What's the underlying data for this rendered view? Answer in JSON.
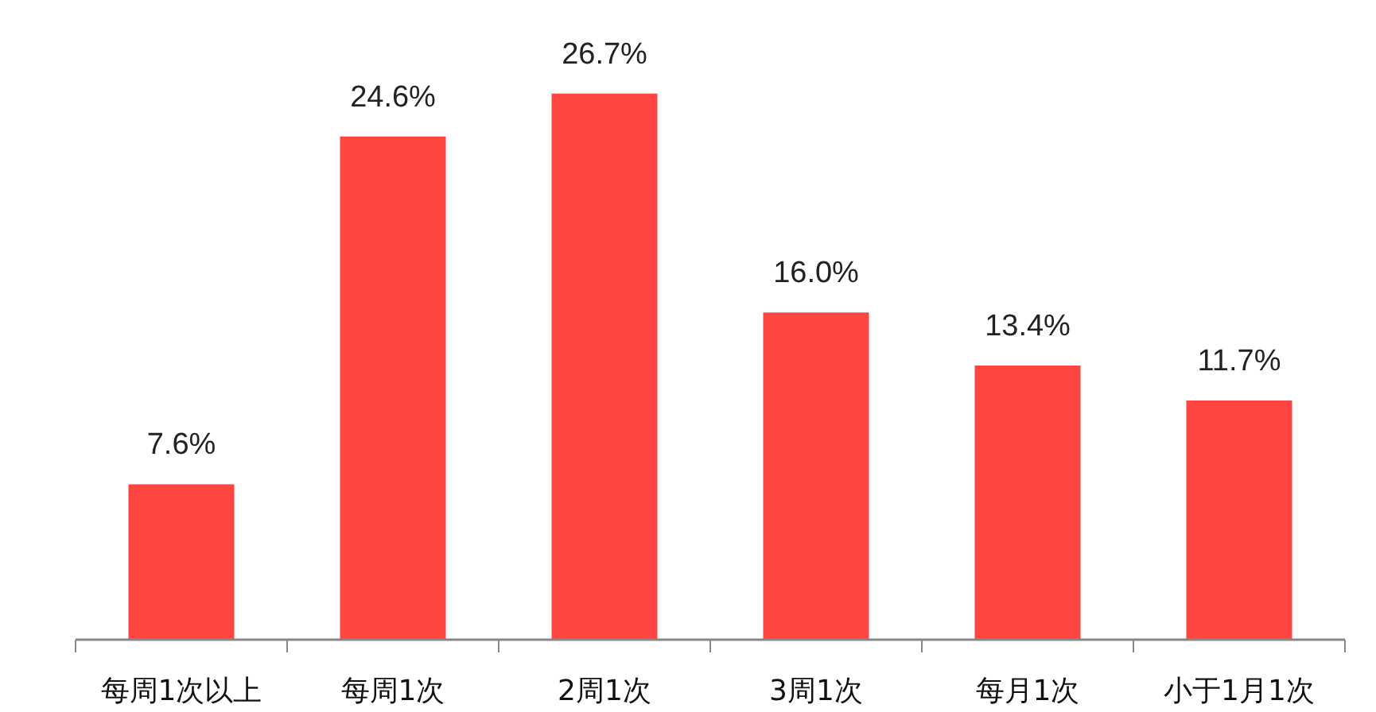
{
  "chart_data": {
    "type": "bar",
    "categories": [
      "每周1次以上",
      "每周1次",
      "2周1次",
      "3周1次",
      "每月1次",
      "小于1月1次"
    ],
    "values": [
      7.6,
      24.6,
      26.7,
      16.0,
      13.4,
      11.7
    ],
    "value_labels": [
      "7.6%",
      "24.6%",
      "26.7%",
      "16.0%",
      "13.4%",
      "11.7%"
    ],
    "color": "#ff4542"
  }
}
